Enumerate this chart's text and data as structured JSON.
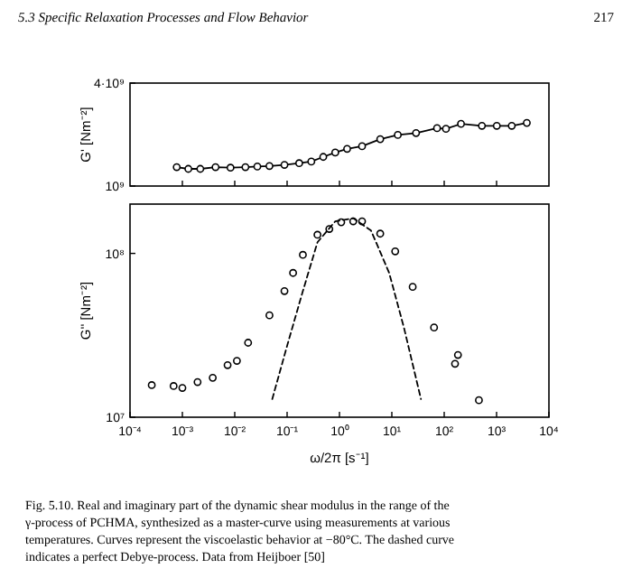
{
  "chart_data": [
    {
      "type": "line",
      "ylabel": "G' [Nm⁻²]",
      "log": "xy",
      "xlim": [
        0.0001,
        10000
      ],
      "ylim": [
        1000000000,
        4000000000
      ],
      "xticks": [
        {
          "value": 0.001,
          "label": null
        },
        {
          "value": 0.01,
          "label": null
        },
        {
          "value": 0.1,
          "label": null
        },
        {
          "value": 1,
          "label": null
        },
        {
          "value": 10,
          "label": null
        },
        {
          "value": 100,
          "label": null
        },
        {
          "value": 1000,
          "label": null
        }
      ],
      "yticks": [
        {
          "value": 1000000000,
          "label": "10⁹"
        },
        {
          "value": 4000000000,
          "label": "4·10⁹"
        }
      ],
      "tick_labels": "y",
      "marker": "circle",
      "line_style": "solid",
      "annotations": [
        "5.3 Specific Relaxation Processes and Flow Behavior",
        "217"
      ],
      "series": [
        {
          "color": "#000000",
          "x": [
            0.00078,
            0.0013,
            0.0022,
            0.0043,
            0.0083,
            0.016,
            0.027,
            0.046,
            0.089,
            0.17,
            0.29,
            0.49,
            0.83,
            1.4,
            2.7,
            6.0,
            13,
            29,
            73,
            108,
            209,
            525,
            1010,
            1950,
            3780
          ],
          "values": [
            1290000000,
            1260000000,
            1260000000,
            1290000000,
            1280000000,
            1290000000,
            1300000000,
            1310000000,
            1330000000,
            1360000000,
            1390000000,
            1480000000,
            1570000000,
            1650000000,
            1710000000,
            1880000000,
            1990000000,
            2040000000,
            2180000000,
            2160000000,
            2310000000,
            2250000000,
            2250000000,
            2250000000,
            2340000000
          ]
        }
      ]
    },
    {
      "type": "scatter",
      "ylabel": "G'' [Nm⁻²]",
      "xlabel": "ω/2π  [s⁻¹]",
      "log": "xy",
      "xlim": [
        0.0001,
        10000
      ],
      "ylim": [
        10000000,
        200000000
      ],
      "xticks": [
        {
          "value": 0.0001,
          "label": "10⁻⁴"
        },
        {
          "value": 0.001,
          "label": "10⁻³"
        },
        {
          "value": 0.01,
          "label": "10⁻²"
        },
        {
          "value": 0.1,
          "label": "10⁻¹"
        },
        {
          "value": 1,
          "label": "10⁰"
        },
        {
          "value": 10,
          "label": "10¹"
        },
        {
          "value": 100,
          "label": "10²"
        },
        {
          "value": 1000,
          "label": "10³"
        },
        {
          "value": 10000,
          "label": "10⁴"
        }
      ],
      "yticks": [
        {
          "value": 10000000,
          "label": "10⁷"
        },
        {
          "value": 100000000,
          "label": "10⁸"
        }
      ],
      "marker": "circle",
      "annotations": [
        "Fig. 5.10. Real and imaginary part of the dynamic shear modulus in the range of the γ-process of PCHMA, synthesized as a master-curve using measurements at various temperatures. Curves represent the viscoelastic behavior at −80°C. The dashed curve indicates a perfect Debye-process. Data from Heijboer [50]"
      ],
      "series": [
        {
          "color": "#000000",
          "x": [
            0.00026,
            0.00068,
            0.001,
            0.00195,
            0.0038,
            0.0073,
            0.011,
            0.018,
            0.046,
            0.089,
            0.13,
            0.2,
            0.38,
            0.64,
            1.08,
            1.83,
            2.7,
            6.0,
            11.6,
            25,
            64,
            161,
            183,
            460
          ],
          "values": [
            15700000,
            15500000,
            15100000,
            16400000,
            17400000,
            20800000,
            22100000,
            28500000,
            41900000,
            58900000,
            76000000,
            98000000,
            130000000,
            141000000,
            155000000,
            157000000,
            157000000,
            132000000,
            103000000,
            62500000,
            35300000,
            21200000,
            24000000,
            12700000
          ]
        },
        {
          "type": "line",
          "marker": "none",
          "line_style": "dashed",
          "color": "#000000",
          "x": [
            0.052,
            0.1,
            0.2,
            0.38,
            0.83,
            1.83,
            4.0,
            8.9,
            17,
            36
          ],
          "values": [
            12900000,
            27300000,
            58900000,
            117000000,
            157000000,
            164000000,
            138000000,
            76000000,
            35300000,
            12900000
          ]
        }
      ]
    }
  ]
}
